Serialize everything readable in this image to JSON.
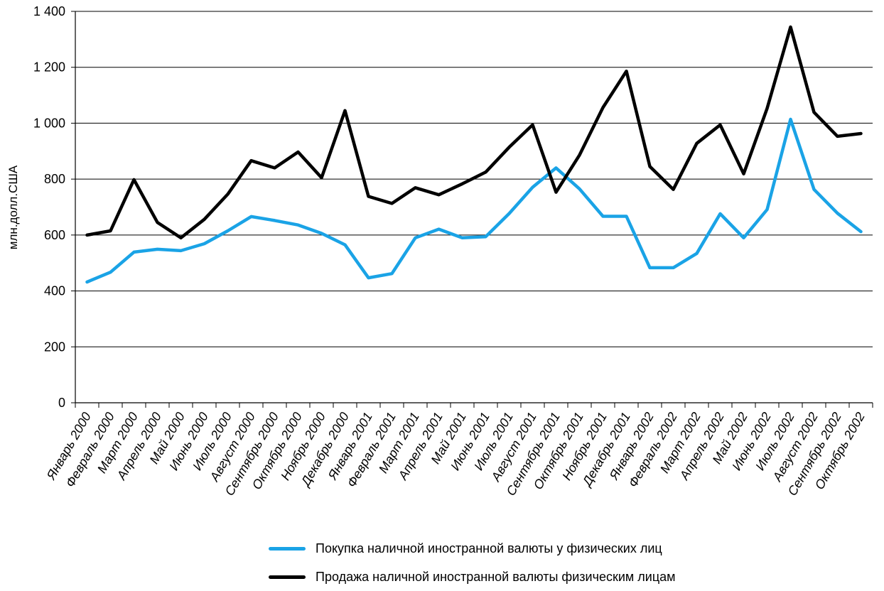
{
  "chart_data": {
    "type": "line",
    "ylabel": "млн.долл.США",
    "ylim": [
      0,
      1400
    ],
    "yticks": [
      0,
      200,
      400,
      600,
      800,
      1000,
      1200,
      1400
    ],
    "ytick_labels": [
      "0",
      "200",
      "400",
      "600",
      "800",
      "1 000",
      "1 200",
      "1 400"
    ],
    "grid": "horizontal",
    "legend_position": "bottom",
    "categories": [
      "Январь 2000",
      "Февраль 2000",
      "Март 2000",
      "Апрель 2000",
      "Май 2000",
      "Июнь 2000",
      "Июль 2000",
      "Август 2000",
      "Сентябрь 2000",
      "Октябрь 2000",
      "Ноябрь 2000",
      "Декабрь 2000",
      "Январь 2001",
      "Февраль 2001",
      "Март 2001",
      "Апрель 2001",
      "Май 2001",
      "Июнь 2001",
      "Июль 2001",
      "Август 2001",
      "Сентябрь 2001",
      "Октябрь 2001",
      "Ноябрь 2001",
      "Декабрь 2001",
      "Январь 2002",
      "Февраль 2002",
      "Март 2002",
      "Апрель 2002",
      "Май 2002",
      "Июнь 2002",
      "Июль 2002",
      "Август 2002",
      "Сентябрь 2002",
      "Октябрь 2002"
    ],
    "series": [
      {
        "name": "Покупка наличной иностранной валюты у физических лиц",
        "color": "#1aa3e6",
        "values": [
          432,
          467,
          539,
          549,
          544,
          569,
          615,
          666,
          652,
          636,
          606,
          565,
          447,
          462,
          590,
          621,
          590,
          594,
          677,
          771,
          840,
          765,
          667,
          667,
          483,
          483,
          534,
          676,
          590,
          691,
          1014,
          763,
          678,
          612
        ]
      },
      {
        "name": "Продажа наличной иностранной валюты физическим лицам",
        "color": "#000000",
        "values": [
          600,
          615,
          798,
          645,
          590,
          656,
          746,
          866,
          840,
          897,
          805,
          1045,
          738,
          713,
          769,
          744,
          783,
          825,
          914,
          994,
          753,
          886,
          1056,
          1186,
          845,
          763,
          928,
          994,
          819,
          1053,
          1344,
          1039,
          953,
          963
        ]
      }
    ]
  }
}
